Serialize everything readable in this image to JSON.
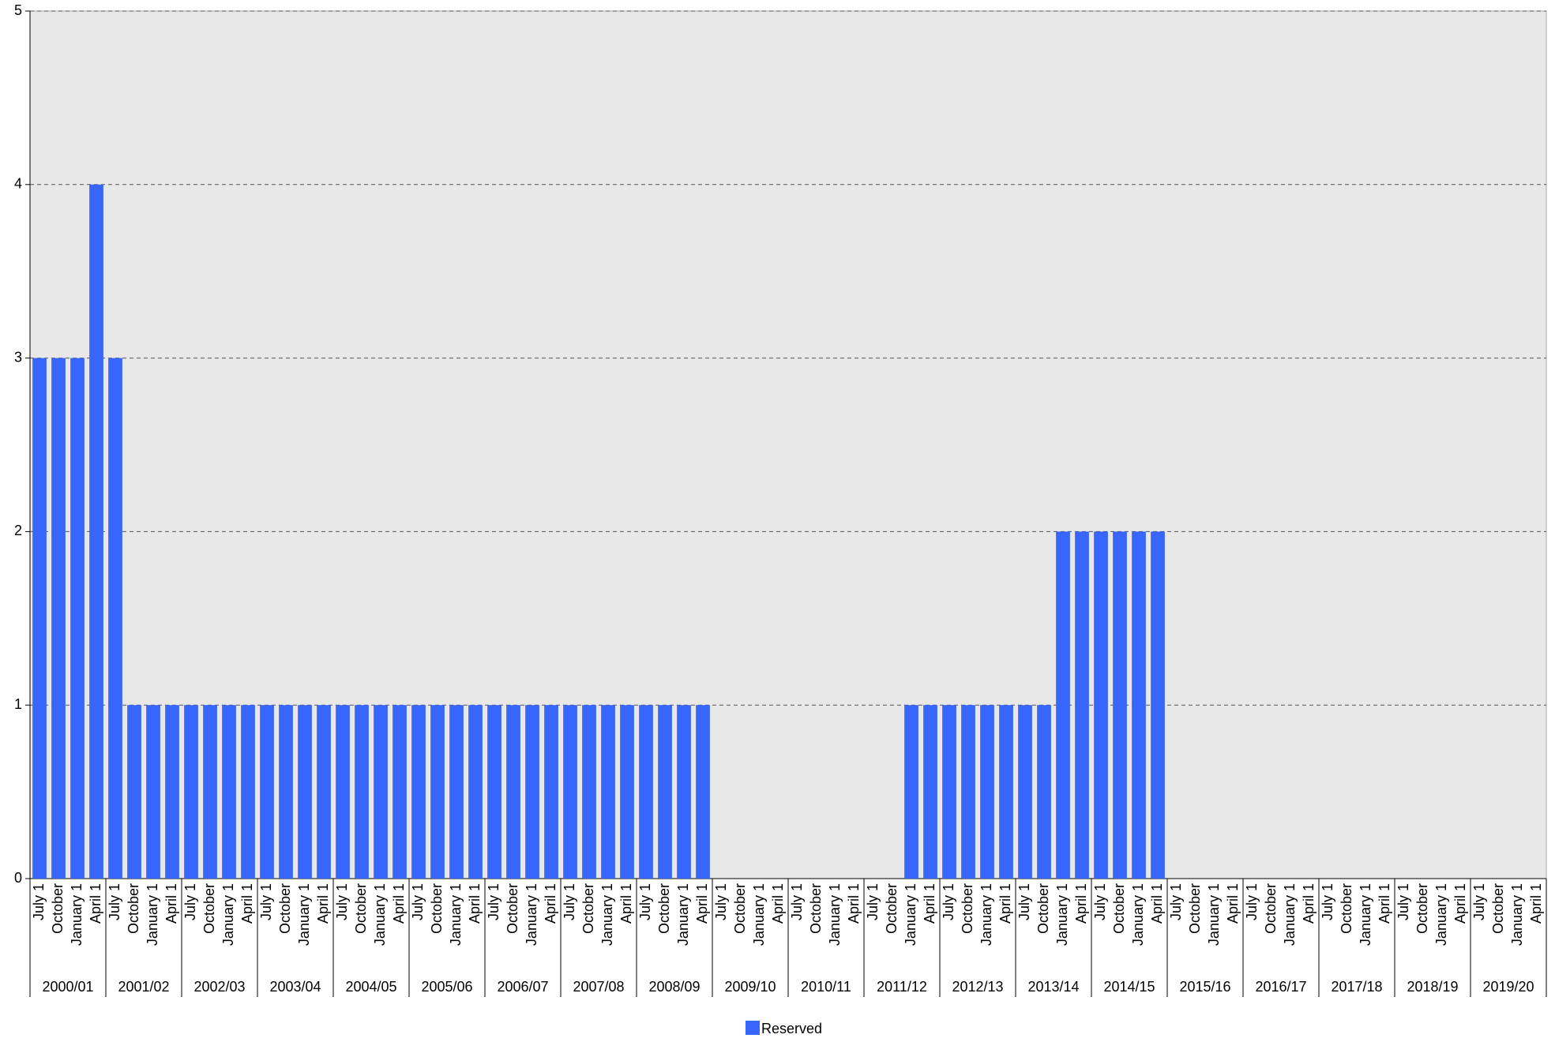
{
  "chart_data": {
    "type": "bar",
    "categories": [
      "July 1",
      "October",
      "January 1",
      "April 1",
      "July 1",
      "October",
      "January 1",
      "April 1",
      "July 1",
      "October",
      "January 1",
      "April 1",
      "July 1",
      "October",
      "January 1",
      "April 1",
      "July 1",
      "October",
      "January 1",
      "April 1",
      "July 1",
      "October",
      "January 1",
      "April 1",
      "July 1",
      "October",
      "January 1",
      "April 1",
      "July 1",
      "October",
      "January 1",
      "April 1",
      "July 1",
      "October",
      "January 1",
      "April 1",
      "July 1",
      "October",
      "January 1",
      "April 1",
      "July 1",
      "October",
      "January 1",
      "April 1",
      "July 1",
      "October",
      "January 1",
      "April 1",
      "July 1",
      "October",
      "January 1",
      "April 1",
      "July 1",
      "October",
      "January 1",
      "April 1",
      "July 1",
      "October",
      "January 1",
      "April 1",
      "July 1",
      "October",
      "January 1",
      "April 1",
      "July 1",
      "October",
      "January 1",
      "April 1",
      "July 1",
      "October",
      "January 1",
      "April 1",
      "July 1",
      "October",
      "January 1",
      "April 1",
      "July 1",
      "October",
      "January 1",
      "April 1"
    ],
    "groups": [
      "2000/01",
      "2001/02",
      "2002/03",
      "2003/04",
      "2004/05",
      "2005/06",
      "2006/07",
      "2007/08",
      "2008/09",
      "2009/10",
      "2010/11",
      "2011/12",
      "2012/13",
      "2013/14",
      "2014/15",
      "2015/16",
      "2016/17",
      "2017/18",
      "2018/19",
      "2019/20"
    ],
    "series": [
      {
        "name": "Reserved",
        "color": "#3865fc",
        "values": [
          3,
          3,
          3,
          4,
          3,
          1,
          1,
          1,
          1,
          1,
          1,
          1,
          1,
          1,
          1,
          1,
          1,
          1,
          1,
          1,
          1,
          1,
          1,
          1,
          1,
          1,
          1,
          1,
          1,
          1,
          1,
          1,
          1,
          1,
          1,
          1,
          0,
          0,
          0,
          0,
          0,
          0,
          0,
          0,
          0,
          0,
          1,
          1,
          1,
          1,
          1,
          1,
          1,
          1,
          2,
          2,
          2,
          2,
          2,
          2,
          0,
          0,
          0,
          0,
          0,
          0,
          0,
          0,
          0,
          0,
          0,
          0,
          0,
          0,
          0,
          0,
          0,
          0,
          0,
          0
        ]
      }
    ],
    "ylim": [
      0,
      5
    ],
    "yticks": [
      0,
      1,
      2,
      3,
      4,
      5
    ],
    "grid": true,
    "legend": "bottom"
  }
}
